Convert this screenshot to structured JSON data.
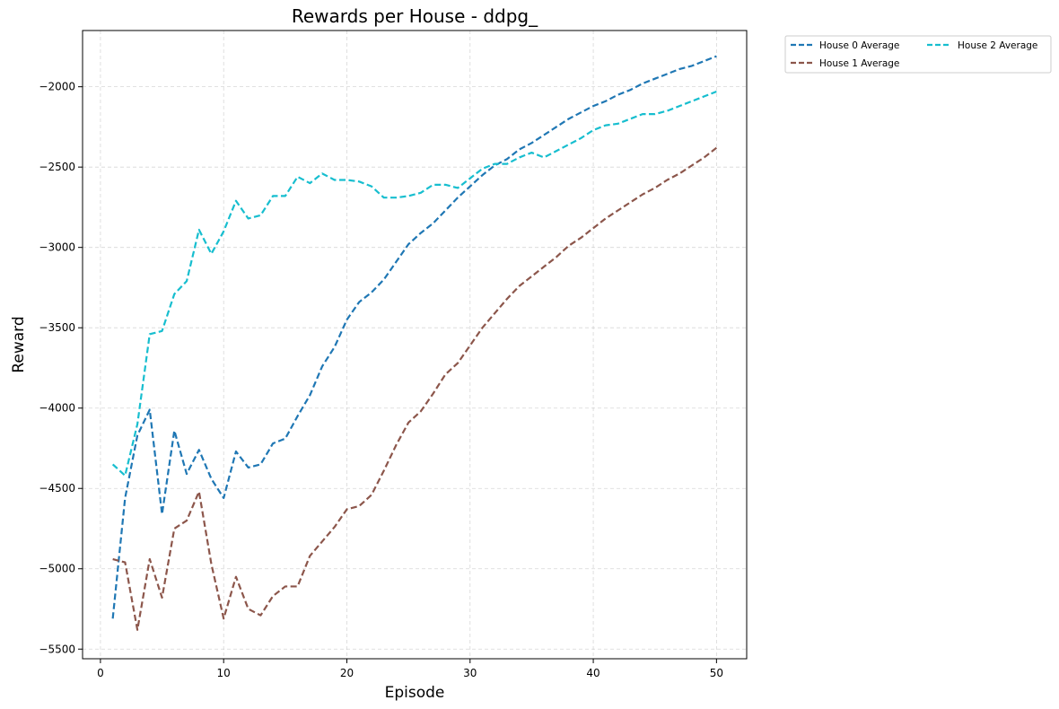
{
  "chart_data": {
    "type": "line",
    "title": "Rewards per House - ddpg_",
    "xlabel": "Episode",
    "ylabel": "Reward",
    "xlim": [
      -1.45,
      52.45
    ],
    "ylim": [
      -5560,
      -1650
    ],
    "xticks": [
      0,
      10,
      20,
      30,
      40,
      50
    ],
    "yticks": [
      -5500,
      -5000,
      -4500,
      -4000,
      -3500,
      -3000,
      -2500,
      -2000
    ],
    "grid": true,
    "legend": {
      "placement": "outside-top-right",
      "columns": 2
    },
    "x": [
      1,
      2,
      3,
      4,
      5,
      6,
      7,
      8,
      9,
      10,
      11,
      12,
      13,
      14,
      15,
      16,
      17,
      18,
      19,
      20,
      21,
      22,
      23,
      24,
      25,
      26,
      27,
      28,
      29,
      30,
      31,
      32,
      33,
      34,
      35,
      36,
      37,
      38,
      39,
      40,
      41,
      42,
      43,
      44,
      45,
      46,
      47,
      48,
      49,
      50
    ],
    "series": [
      {
        "name": "House 0 Average",
        "color": "#1f77b4",
        "values": [
          -5310,
          -4560,
          -4170,
          -4010,
          -4660,
          -4140,
          -4410,
          -4260,
          -4440,
          -4560,
          -4270,
          -4370,
          -4350,
          -4220,
          -4190,
          -4050,
          -3920,
          -3740,
          -3620,
          -3450,
          -3340,
          -3280,
          -3200,
          -3090,
          -2980,
          -2910,
          -2850,
          -2770,
          -2690,
          -2620,
          -2550,
          -2490,
          -2450,
          -2390,
          -2350,
          -2300,
          -2250,
          -2200,
          -2160,
          -2120,
          -2090,
          -2050,
          -2020,
          -1980,
          -1950,
          -1920,
          -1890,
          -1870,
          -1840,
          -1810
        ]
      },
      {
        "name": "House 1 Average",
        "color": "#8c564b",
        "values": [
          -4940,
          -4960,
          -5380,
          -4940,
          -5180,
          -4750,
          -4700,
          -4520,
          -4970,
          -5310,
          -5050,
          -5250,
          -5290,
          -5170,
          -5110,
          -5110,
          -4920,
          -4830,
          -4740,
          -4630,
          -4610,
          -4540,
          -4390,
          -4230,
          -4090,
          -4020,
          -3910,
          -3790,
          -3720,
          -3610,
          -3500,
          -3410,
          -3320,
          -3240,
          -3180,
          -3120,
          -3060,
          -2990,
          -2940,
          -2880,
          -2820,
          -2770,
          -2720,
          -2670,
          -2630,
          -2580,
          -2540,
          -2490,
          -2440,
          -2380
        ]
      },
      {
        "name": "House 2 Average",
        "color": "#17becf",
        "values": [
          -4350,
          -4420,
          -4100,
          -3540,
          -3520,
          -3290,
          -3210,
          -2890,
          -3040,
          -2900,
          -2710,
          -2820,
          -2800,
          -2680,
          -2680,
          -2560,
          -2600,
          -2540,
          -2580,
          -2580,
          -2590,
          -2620,
          -2690,
          -2690,
          -2680,
          -2660,
          -2610,
          -2610,
          -2630,
          -2570,
          -2510,
          -2480,
          -2480,
          -2440,
          -2410,
          -2440,
          -2400,
          -2360,
          -2320,
          -2270,
          -2240,
          -2230,
          -2200,
          -2170,
          -2170,
          -2150,
          -2120,
          -2090,
          -2060,
          -2030
        ]
      }
    ]
  }
}
